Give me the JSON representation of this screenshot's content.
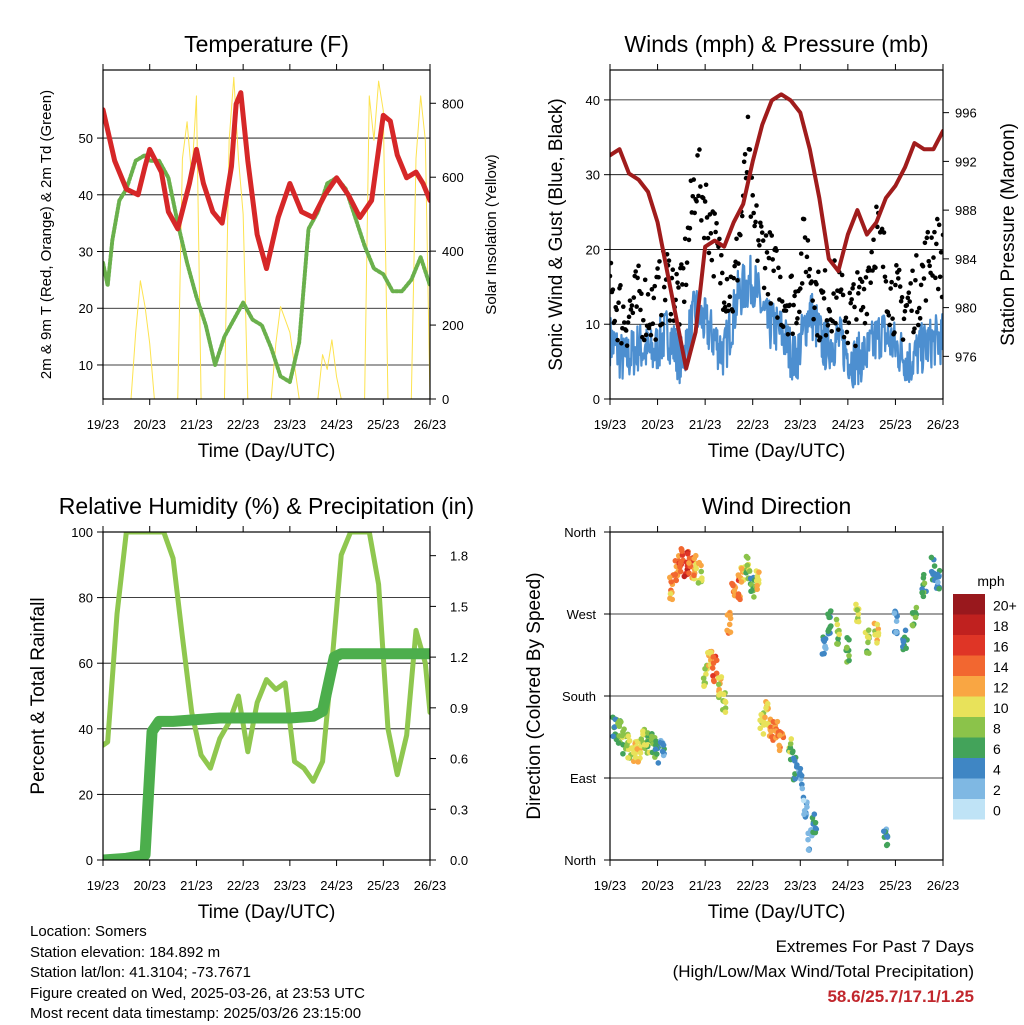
{
  "chart_data": [
    {
      "type": "line",
      "title": "Temperature (F)",
      "xlabel": "Time (Day/UTC)",
      "ylabel": "2m & 9m T (Red, Orange) & 2m Td (Green)",
      "y2label": "Solar Insolation (Yellow)",
      "ylim": [
        4,
        62
      ],
      "y2lim": [
        0,
        890
      ],
      "xticks": [
        "19/23",
        "20/23",
        "21/23",
        "22/23",
        "23/23",
        "24/23",
        "25/23",
        "26/23"
      ],
      "yticks": [
        10,
        20,
        30,
        40,
        50
      ],
      "y2ticks": [
        0,
        200,
        400,
        600,
        800
      ],
      "grid": true,
      "series": [
        {
          "color": "#d62728",
          "x": [
            0,
            0.25,
            0.5,
            0.75,
            0.9,
            1.0,
            1.25,
            1.4,
            1.6,
            1.85,
            2.0,
            2.15,
            2.35,
            2.55,
            2.75,
            2.85,
            2.95,
            3.1,
            3.3,
            3.5,
            3.75,
            4.0,
            4.25,
            4.5,
            4.75,
            5.0,
            5.25,
            5.5,
            5.75,
            6.0,
            6.15,
            6.3,
            6.5,
            6.7,
            6.85,
            7.0
          ],
          "values": [
            55,
            46,
            41,
            40,
            45,
            48,
            44,
            37,
            34,
            42,
            48,
            42,
            37,
            35,
            45,
            56,
            58,
            46,
            33,
            27,
            36,
            42,
            37,
            36,
            40,
            43,
            40,
            36,
            39,
            54,
            53,
            47,
            43,
            44,
            42,
            39
          ]
        },
        {
          "color": "#6ab04c",
          "x": [
            0,
            0.1,
            0.2,
            0.35,
            0.5,
            0.7,
            0.9,
            1.0,
            1.2,
            1.4,
            1.6,
            1.8,
            2.0,
            2.2,
            2.4,
            2.6,
            2.8,
            3.0,
            3.2,
            3.4,
            3.6,
            3.8,
            4.0,
            4.2,
            4.4,
            4.6,
            4.8,
            5.0,
            5.2,
            5.4,
            5.6,
            5.8,
            6.0,
            6.2,
            6.4,
            6.6,
            6.8,
            7.0
          ],
          "values": [
            28,
            24,
            32,
            39,
            41,
            46,
            47,
            46,
            46,
            43,
            35,
            28,
            22,
            17,
            10,
            15,
            18,
            21,
            18,
            17,
            13,
            8,
            7,
            14,
            34,
            37,
            42,
            43,
            41,
            36,
            31,
            27,
            26,
            23,
            23,
            25,
            29,
            24
          ]
        },
        {
          "color": "#fde34f",
          "x": [
            0.6,
            0.7,
            0.8,
            0.9,
            1.0,
            1.1,
            1.6,
            1.7,
            1.8,
            1.9,
            2.0,
            2.1,
            2.6,
            2.7,
            2.8,
            2.9,
            3.0,
            3.1,
            3.6,
            3.7,
            3.8,
            4.0,
            4.2,
            4.6,
            4.7,
            4.8,
            4.9,
            5.0,
            5.1,
            5.6,
            5.7,
            5.8,
            5.9,
            6.0,
            6.1,
            6.6,
            6.7,
            6.8,
            6.9,
            7.0
          ],
          "values": [
            0,
            180,
            320,
            250,
            150,
            0,
            0,
            650,
            750,
            600,
            820,
            0,
            0,
            700,
            870,
            650,
            500,
            0,
            0,
            150,
            250,
            180,
            0,
            0,
            120,
            80,
            160,
            60,
            0,
            0,
            820,
            700,
            860,
            780,
            0,
            0,
            650,
            820,
            700,
            0
          ]
        }
      ]
    },
    {
      "type": "scatter",
      "title": "Winds (mph) & Pressure (mb)",
      "xlabel": "Time (Day/UTC)",
      "ylabel": "Sonic Wind & Gust (Blue, Black)",
      "y2label": "Station Pressure (Maroon)",
      "ylim": [
        0,
        44
      ],
      "y2lim": [
        972.5,
        999.5
      ],
      "xticks": [
        "19/23",
        "20/23",
        "21/23",
        "22/23",
        "23/23",
        "24/23",
        "25/23",
        "26/23"
      ],
      "yticks": [
        0,
        10,
        20,
        30,
        40
      ],
      "y2ticks": [
        976,
        980,
        984,
        988,
        992,
        996
      ],
      "grid": true,
      "series": [
        {
          "color": "#4d8fd0",
          "x": [
            0,
            0.3,
            0.6,
            0.9,
            1.2,
            1.5,
            1.8,
            2.1,
            2.4,
            2.7,
            3.0,
            3.3,
            3.6,
            3.9,
            4.2,
            4.5,
            4.8,
            5.1,
            5.4,
            5.7,
            6.0,
            6.3,
            6.6,
            6.9
          ],
          "values": [
            8,
            5,
            7,
            6,
            9,
            5,
            12,
            9,
            6,
            14,
            16,
            10,
            9,
            5,
            12,
            7,
            8,
            5,
            6,
            9,
            7,
            5,
            7,
            8
          ]
        },
        {
          "color": "#000000",
          "x": [
            0,
            0.3,
            0.6,
            0.9,
            1.2,
            1.5,
            1.8,
            2.0,
            2.3,
            2.6,
            2.9,
            3.0,
            3.3,
            3.6,
            3.9,
            4.1,
            4.4,
            4.7,
            5.0,
            5.3,
            5.6,
            5.9,
            6.2,
            6.5,
            6.8,
            7.0
          ],
          "values": [
            14,
            11,
            13,
            12,
            16,
            13,
            30,
            26,
            18,
            14,
            33,
            23,
            19,
            14,
            13,
            21,
            12,
            14,
            11,
            13,
            23,
            14,
            12,
            15,
            21,
            18
          ]
        },
        {
          "color": "#a01c1c",
          "x": [
            0,
            0.2,
            0.4,
            0.6,
            0.8,
            1.0,
            1.2,
            1.4,
            1.6,
            1.8,
            2.0,
            2.2,
            2.4,
            2.6,
            2.8,
            3.0,
            3.2,
            3.4,
            3.6,
            3.8,
            4.0,
            4.2,
            4.4,
            4.6,
            4.8,
            5.0,
            5.2,
            5.4,
            5.6,
            5.8,
            6.0,
            6.2,
            6.4,
            6.6,
            6.8,
            7.0
          ],
          "values": [
            992.5,
            993,
            991,
            990.5,
            989.5,
            987,
            983,
            979,
            975,
            978,
            985,
            985.5,
            985,
            987,
            988.5,
            992,
            995,
            997,
            997.5,
            997,
            996,
            993,
            989,
            984,
            983,
            986,
            988,
            986,
            987,
            989,
            990,
            991.5,
            993.5,
            993,
            993,
            994.5
          ]
        }
      ]
    },
    {
      "type": "line",
      "title": "Relative Humidity (%) & Precipitation (in)",
      "xlabel": "Time (Day/UTC)",
      "ylabel": "Percent & Total Rainfall",
      "ylim": [
        0,
        100
      ],
      "y2lim": [
        0.0,
        1.94
      ],
      "xticks": [
        "19/23",
        "20/23",
        "21/23",
        "22/23",
        "23/23",
        "24/23",
        "25/23",
        "26/23"
      ],
      "yticks": [
        0,
        20,
        40,
        60,
        80,
        100
      ],
      "y2ticks": [
        "0.0",
        "0.3",
        "0.6",
        "0.9",
        "1.2",
        "1.5",
        "1.8"
      ],
      "grid": true,
      "series": [
        {
          "color": "#8fc74f",
          "x": [
            0,
            0.1,
            0.3,
            0.5,
            0.7,
            0.9,
            1.1,
            1.3,
            1.5,
            1.7,
            1.9,
            2.1,
            2.3,
            2.5,
            2.7,
            2.9,
            3.1,
            3.3,
            3.5,
            3.7,
            3.9,
            4.1,
            4.3,
            4.5,
            4.7,
            4.9,
            5.1,
            5.3,
            5.5,
            5.7,
            5.9,
            6.1,
            6.3,
            6.5,
            6.7,
            6.9,
            7.0
          ],
          "values": [
            35,
            36,
            75,
            100,
            100,
            100,
            100,
            100,
            92,
            68,
            45,
            32,
            28,
            37,
            42,
            50,
            33,
            48,
            55,
            52,
            54,
            30,
            28,
            24,
            30,
            60,
            93,
            100,
            100,
            100,
            84,
            40,
            26,
            38,
            70,
            60,
            45
          ]
        },
        {
          "color": "#4cae4c",
          "x": [
            0,
            0.5,
            0.9,
            1.05,
            1.2,
            1.5,
            2.0,
            2.5,
            3.0,
            3.5,
            4.0,
            4.5,
            4.7,
            4.95,
            5.1,
            5.5,
            6.0,
            6.5,
            7.0
          ],
          "values": [
            0.0,
            0.01,
            0.03,
            0.76,
            0.82,
            0.82,
            0.83,
            0.84,
            0.84,
            0.84,
            0.84,
            0.85,
            0.88,
            1.2,
            1.22,
            1.22,
            1.22,
            1.22,
            1.22
          ]
        }
      ]
    },
    {
      "type": "scatter",
      "title": "Wind Direction",
      "xlabel": "Time (Day/UTC)",
      "ylabel": "Direction (Colored By Speed)",
      "ylim": [
        0,
        360
      ],
      "xticks": [
        "19/23",
        "20/23",
        "21/23",
        "22/23",
        "23/23",
        "24/23",
        "25/23",
        "26/23"
      ],
      "yticks": [
        "North",
        "East",
        "South",
        "West",
        "North"
      ],
      "grid": true,
      "colorbar": {
        "title": "mph",
        "labels": [
          "20+",
          "18",
          "16",
          "14",
          "12",
          "10",
          "8",
          "6",
          "4",
          "2",
          "0"
        ],
        "colors": [
          "#99181d",
          "#c0211f",
          "#df3526",
          "#f26730",
          "#f9a643",
          "#e8e25a",
          "#8bc34a",
          "#43a35a",
          "#3f86c4",
          "#7fb8e3",
          "#bfe3f6"
        ]
      },
      "series": [
        {
          "name": "",
          "x": [
            0.1,
            0.2,
            0.3,
            0.4,
            0.5,
            0.6,
            0.7,
            0.8,
            0.9,
            1.0,
            1.1,
            1.3,
            1.4,
            1.5,
            1.6,
            1.7,
            1.8,
            1.9,
            2.0,
            2.1,
            2.2,
            2.3,
            2.4,
            2.5,
            2.6,
            2.7,
            2.8,
            2.9,
            3.0,
            3.1,
            3.2,
            3.3,
            3.4,
            3.5,
            3.6,
            3.8,
            3.9,
            4.0,
            4.1,
            4.2,
            4.3,
            4.5,
            4.6,
            4.8,
            5.0,
            5.2,
            5.4,
            5.6,
            5.8,
            6.0,
            6.2,
            6.4,
            6.6,
            6.8,
            6.9
          ],
          "y": [
            145,
            140,
            130,
            125,
            122,
            120,
            133,
            128,
            125,
            120,
            118,
            300,
            320,
            330,
            325,
            318,
            322,
            315,
            200,
            220,
            210,
            190,
            170,
            260,
            290,
            300,
            310,
            320,
            300,
            310,
            150,
            160,
            145,
            140,
            130,
            120,
            100,
            90,
            60,
            20,
            40,
            240,
            260,
            250,
            230,
            270,
            240,
            250,
            20,
            260,
            240,
            270,
            300,
            320,
            310
          ],
          "speeds": [
            6,
            7,
            8,
            9,
            10,
            11,
            9,
            8,
            7,
            5,
            4,
            12,
            13,
            15,
            16,
            14,
            12,
            10,
            9,
            12,
            14,
            10,
            9,
            12,
            13,
            14,
            11,
            8,
            6,
            10,
            9,
            11,
            12,
            13,
            14,
            8,
            5,
            3,
            2,
            3,
            5,
            4,
            6,
            8,
            7,
            9,
            8,
            10,
            4,
            3,
            5,
            7,
            6,
            5,
            4
          ]
        }
      ]
    }
  ],
  "info": {
    "location": "Location: Somers",
    "elevation": "Station elevation: 184.892 m",
    "latlon": "Station lat/lon: 41.3104; -73.7671",
    "created": "Figure created on Wed, 2025-03-26, at 23:53 UTC",
    "recent": "Most recent data timestamp: 2025/03/26 23:15:00"
  },
  "extremes": {
    "heading": "Extremes For Past 7 Days",
    "subheading": "(High/Low/Max Wind/Total Precipitation)",
    "values": "58.6/25.7/17.1/1.25"
  }
}
